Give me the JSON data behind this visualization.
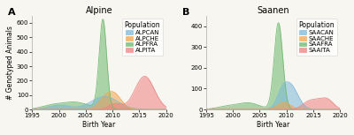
{
  "title_A": "Alpine",
  "title_B": "Saanen",
  "label_A": "A",
  "label_B": "B",
  "xlabel": "Birth Year",
  "ylabel": "# Genotyped Animals",
  "xlim": [
    1995,
    2020
  ],
  "ylim_A": [
    0,
    650
  ],
  "ylim_B": [
    0,
    450
  ],
  "yticks_A": [
    0,
    100,
    200,
    300,
    400,
    500,
    600
  ],
  "yticks_B": [
    0,
    100,
    200,
    300,
    400
  ],
  "xticks": [
    1995,
    2000,
    2005,
    2010,
    2015,
    2020
  ],
  "populations_A": [
    "ALPCAN",
    "ALPCHE",
    "ALPFRA",
    "ALPITA"
  ],
  "populations_B": [
    "SAACAN",
    "SAACHE",
    "SAAFRA",
    "SAAITA"
  ],
  "colors": {
    "ALPCAN": "#7ab8d9",
    "ALPCHE": "#f4a44a",
    "ALPFRA": "#6bb86e",
    "ALPITA": "#f08080",
    "SAACAN": "#7ab8d9",
    "SAACHE": "#f4a44a",
    "SAAFRA": "#6bb86e",
    "SAAITA": "#f08080"
  },
  "alpha": 0.55,
  "background_color": "#f7f6f0",
  "legend_title": "Population",
  "legend_fontsize": 5.0,
  "tick_fontsize": 5.0,
  "label_fontsize": 5.5,
  "title_fontsize": 7.0,
  "curves_A": {
    "ALPFRA": [
      {
        "mean": 2008.2,
        "std": 0.7,
        "scale": 620
      },
      {
        "mean": 2003.0,
        "std": 2.5,
        "scale": 50
      },
      {
        "mean": 1998.5,
        "std": 2.0,
        "scale": 25
      }
    ],
    "ALPCAN": [
      {
        "mean": 2008.5,
        "std": 2.5,
        "scale": 90
      },
      {
        "mean": 2000.0,
        "std": 2.0,
        "scale": 30
      }
    ],
    "ALPCHE": [
      {
        "mean": 2010.0,
        "std": 1.5,
        "scale": 120
      },
      {
        "mean": 2008.0,
        "std": 1.0,
        "scale": 30
      }
    ],
    "ALPITA": [
      {
        "mean": 2016.0,
        "std": 1.8,
        "scale": 230
      },
      {
        "mean": 2010.5,
        "std": 1.2,
        "scale": 40
      }
    ]
  },
  "curves_B": {
    "SAAFRA": [
      {
        "mean": 2008.5,
        "std": 0.8,
        "scale": 415
      },
      {
        "mean": 2003.0,
        "std": 2.0,
        "scale": 30
      },
      {
        "mean": 1999.0,
        "std": 2.0,
        "scale": 15
      }
    ],
    "SAACAN": [
      {
        "mean": 2010.5,
        "std": 1.5,
        "scale": 125
      },
      {
        "mean": 2009.0,
        "std": 0.8,
        "scale": 30
      }
    ],
    "SAACHE": [
      {
        "mean": 2009.5,
        "std": 1.2,
        "scale": 35
      }
    ],
    "SAAITA": [
      {
        "mean": 2016.5,
        "std": 1.5,
        "scale": 45
      },
      {
        "mean": 2014.0,
        "std": 1.2,
        "scale": 30
      },
      {
        "mean": 2018.0,
        "std": 1.0,
        "scale": 20
      }
    ]
  },
  "draw_order_A": [
    "ALPFRA",
    "ALPCAN",
    "ALPCHE",
    "ALPITA"
  ],
  "draw_order_B": [
    "SAAFRA",
    "SAACAN",
    "SAACHE",
    "SAAITA"
  ]
}
